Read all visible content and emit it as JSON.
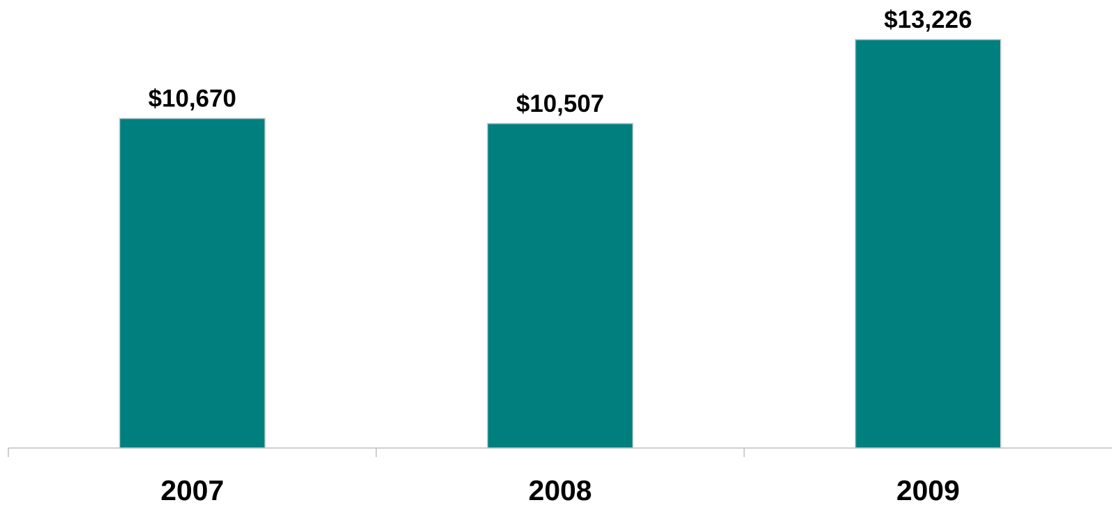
{
  "chart_data": {
    "type": "bar",
    "categories": [
      "2007",
      "2008",
      "2009"
    ],
    "values": [
      10670,
      10507,
      13226
    ],
    "data_labels": [
      "$10,670",
      "$10,507",
      "$13,226"
    ],
    "title": "",
    "xlabel": "",
    "ylabel": "",
    "ylim": [
      0,
      13226
    ],
    "grid": false,
    "legend": "none",
    "colors": {
      "bar": "#007f7f",
      "bar_border": "#b7c4c4",
      "axis": "#bfbfbf",
      "text": "#000000"
    }
  }
}
